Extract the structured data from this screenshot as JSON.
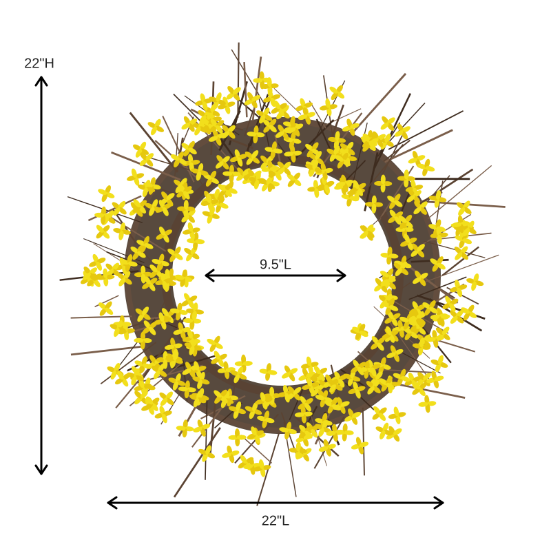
{
  "labels": {
    "height": "22\"H",
    "inner_length": "9.5\"L",
    "length": "22\"L"
  }
}
